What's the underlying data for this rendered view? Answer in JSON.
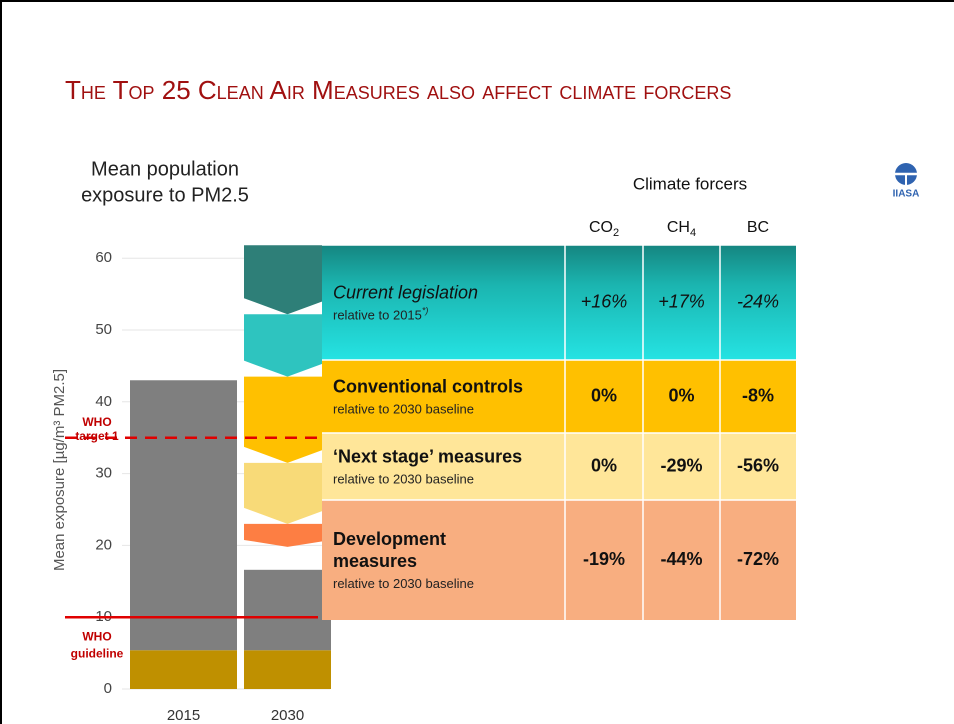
{
  "title": "The Top 25 Clean Air Measures also affect climate forcers",
  "logo": "IIASA",
  "chart_data": {
    "type": "bar",
    "title_lines": [
      "Mean population",
      "exposure to PM2.5"
    ],
    "ylabel": "Mean exposure [µg/m³ PM2.5]",
    "categories": [
      "2015",
      "2030"
    ],
    "series": [
      {
        "color": "#bf9000",
        "values": [
          5.4,
          5.4
        ]
      },
      {
        "color": "#7f7f7f",
        "values": [
          37.6,
          11.2
        ]
      }
    ],
    "arrows": [
      {
        "color": "#2e7f78",
        "from": 61.8,
        "to": 52.2
      },
      {
        "color": "#2ec4bf",
        "from": 52.2,
        "to": 43.5
      },
      {
        "color": "#ffc000",
        "from": 43.5,
        "to": 31.5
      },
      {
        "color": "#f8da78",
        "from": 31.5,
        "to": 23
      },
      {
        "color": "#fd7e43",
        "from": 23,
        "to": 19.8
      }
    ],
    "reference_lines": [
      {
        "value": 35,
        "label_lines": [
          "WHO",
          "target 1"
        ],
        "dashed": true,
        "color": "#e00000"
      },
      {
        "value": 10,
        "label_lines": [
          "WHO",
          "guideline"
        ],
        "dashed": false,
        "color": "#e00000"
      }
    ],
    "ylim": [
      0,
      62
    ],
    "yticks": [
      0,
      10,
      20,
      30,
      40,
      50,
      60
    ],
    "grid": true
  },
  "table": {
    "title": "Climate forcers",
    "columns": [
      {
        "text": "CO",
        "sub": "2"
      },
      {
        "text": "CH",
        "sub": "4"
      },
      {
        "text": "BC"
      }
    ],
    "rows": [
      {
        "label_lines": [
          "Current legislation"
        ],
        "note": "relative to 2015",
        "note_sup": "*)",
        "values": [
          "+16%",
          "+17%",
          "-24%"
        ],
        "color": "#22d4d2",
        "style": "italic"
      },
      {
        "label_lines": [
          "Conventional controls"
        ],
        "note": "relative to 2030 baseline",
        "values": [
          "0%",
          "0%",
          "-8%"
        ],
        "color": "#ffc000",
        "style": "bold"
      },
      {
        "label_lines": [
          "‘Next stage’ measures"
        ],
        "note": "relative to 2030 baseline",
        "values": [
          "0%",
          "-29%",
          "-56%"
        ],
        "color": "#ffe699",
        "style": "bold"
      },
      {
        "label_lines": [
          "Development",
          "measures"
        ],
        "note": "relative to 2030 baseline",
        "values": [
          "-19%",
          "-44%",
          "-72%"
        ],
        "color": "#f8ae80",
        "style": "bold"
      }
    ]
  }
}
